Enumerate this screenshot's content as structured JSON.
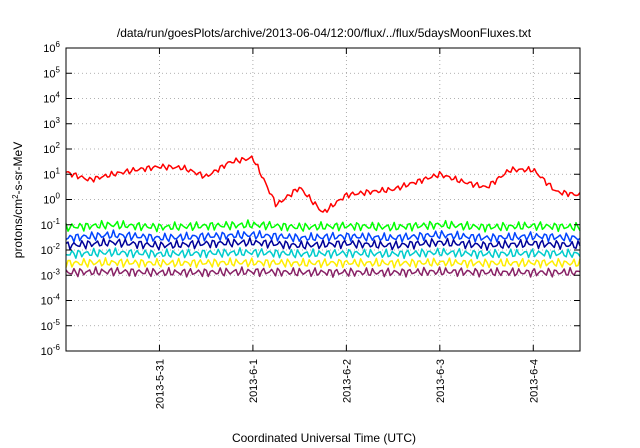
{
  "chart_data": {
    "type": "line",
    "title": "/data/run/goesPlots/archive/2013-06-04/12:00/flux/../flux/5daysMoonFluxes.txt",
    "xlabel": "Coordinated Universal Time (UTC)",
    "ylabel": "protons/cm²-s-sr-MeV",
    "ylabel_parts": {
      "base": "protons/cm",
      "sup": "2",
      "rest": "-s-sr-MeV"
    },
    "yscale": "log",
    "ylim": [
      1e-06,
      1000000.0
    ],
    "y_ticks": [
      {
        "exp": -6,
        "base": "10",
        "sup": "-6"
      },
      {
        "exp": -5,
        "base": "10",
        "sup": "-5"
      },
      {
        "exp": -4,
        "base": "10",
        "sup": "-4"
      },
      {
        "exp": -3,
        "base": "10",
        "sup": "-3"
      },
      {
        "exp": -2,
        "base": "10",
        "sup": "-2"
      },
      {
        "exp": -1,
        "base": "10",
        "sup": "-1"
      },
      {
        "exp": 0,
        "base": "10",
        "sup": "0"
      },
      {
        "exp": 1,
        "base": "10",
        "sup": "1"
      },
      {
        "exp": 2,
        "base": "10",
        "sup": "2"
      },
      {
        "exp": 3,
        "base": "10",
        "sup": "3"
      },
      {
        "exp": 4,
        "base": "10",
        "sup": "4"
      },
      {
        "exp": 5,
        "base": "10",
        "sup": "5"
      },
      {
        "exp": 6,
        "base": "10",
        "sup": "6"
      }
    ],
    "x_range": [
      "2013-05-30 00:00",
      "2013-06-04 12:00"
    ],
    "x_ticks": [
      "2013-5-31",
      "2013-6-1",
      "2013-6-2",
      "2013-6-3",
      "2013-6-4"
    ],
    "grid": true,
    "series": [
      {
        "color": "#ff0000",
        "x": [
          "2013-05-30 00:00",
          "2013-05-30 06:00",
          "2013-05-30 12:00",
          "2013-05-30 18:00",
          "2013-05-31 00:00",
          "2013-05-31 06:00",
          "2013-05-31 12:00",
          "2013-05-31 18:00",
          "2013-06-01 00:00",
          "2013-06-01 06:00",
          "2013-06-01 12:00",
          "2013-06-01 18:00",
          "2013-06-02 00:00",
          "2013-06-02 06:00",
          "2013-06-02 12:00",
          "2013-06-02 18:00",
          "2013-06-03 00:00",
          "2013-06-03 06:00",
          "2013-06-03 12:00",
          "2013-06-03 18:00",
          "2013-06-04 00:00",
          "2013-06-04 06:00",
          "2013-06-04 12:00"
        ],
        "values": [
          12,
          6,
          10,
          15,
          20,
          18,
          8,
          30,
          45,
          0.6,
          3,
          0.3,
          1.5,
          2,
          2.5,
          5,
          10,
          5,
          3,
          15,
          15,
          2,
          1.5
        ]
      },
      {
        "color": "#00ff00",
        "x": [
          "2013-05-30 00:00",
          "2013-05-30 12:00",
          "2013-05-31 00:00",
          "2013-05-31 12:00",
          "2013-06-01 00:00",
          "2013-06-01 12:00",
          "2013-06-02 00:00",
          "2013-06-02 12:00",
          "2013-06-03 00:00",
          "2013-06-03 12:00",
          "2013-06-04 00:00",
          "2013-06-04 12:00"
        ],
        "values": [
          0.08,
          0.1,
          0.08,
          0.09,
          0.1,
          0.08,
          0.09,
          0.08,
          0.1,
          0.08,
          0.09,
          0.08
        ]
      },
      {
        "color": "#0044ff",
        "x": [
          "2013-05-30 00:00",
          "2013-05-30 12:00",
          "2013-05-31 00:00",
          "2013-05-31 12:00",
          "2013-06-01 00:00",
          "2013-06-01 12:00",
          "2013-06-02 00:00",
          "2013-06-02 12:00",
          "2013-06-03 00:00",
          "2013-06-03 12:00",
          "2013-06-04 00:00",
          "2013-06-04 12:00"
        ],
        "values": [
          0.03,
          0.04,
          0.03,
          0.035,
          0.04,
          0.03,
          0.035,
          0.03,
          0.04,
          0.03,
          0.035,
          0.03
        ]
      },
      {
        "color": "#000099",
        "x": [
          "2013-05-30 00:00",
          "2013-05-30 12:00",
          "2013-05-31 00:00",
          "2013-05-31 12:00",
          "2013-06-01 00:00",
          "2013-06-01 12:00",
          "2013-06-02 00:00",
          "2013-06-02 12:00",
          "2013-06-03 00:00",
          "2013-06-03 12:00",
          "2013-06-04 00:00",
          "2013-06-04 12:00"
        ],
        "values": [
          0.015,
          0.02,
          0.015,
          0.018,
          0.02,
          0.015,
          0.018,
          0.015,
          0.02,
          0.015,
          0.018,
          0.015
        ]
      },
      {
        "color": "#00cccc",
        "x": [
          "2013-05-30 00:00",
          "2013-05-30 12:00",
          "2013-05-31 00:00",
          "2013-05-31 12:00",
          "2013-06-01 00:00",
          "2013-06-01 12:00",
          "2013-06-02 00:00",
          "2013-06-02 12:00",
          "2013-06-03 00:00",
          "2013-06-03 12:00",
          "2013-06-04 00:00",
          "2013-06-04 12:00"
        ],
        "values": [
          0.007,
          0.008,
          0.007,
          0.0075,
          0.008,
          0.007,
          0.0075,
          0.007,
          0.008,
          0.007,
          0.0075,
          0.007
        ]
      },
      {
        "color": "#ffee00",
        "x": [
          "2013-05-30 00:00",
          "2013-05-30 12:00",
          "2013-05-31 00:00",
          "2013-05-31 12:00",
          "2013-06-01 00:00",
          "2013-06-01 12:00",
          "2013-06-02 00:00",
          "2013-06-02 12:00",
          "2013-06-03 00:00",
          "2013-06-03 12:00",
          "2013-06-04 00:00",
          "2013-06-04 12:00"
        ],
        "values": [
          0.003,
          0.0032,
          0.003,
          0.0031,
          0.0032,
          0.003,
          0.0031,
          0.003,
          0.0032,
          0.003,
          0.0031,
          0.003
        ]
      },
      {
        "color": "#882266",
        "x": [
          "2013-05-30 00:00",
          "2013-05-30 12:00",
          "2013-05-31 00:00",
          "2013-05-31 12:00",
          "2013-06-01 00:00",
          "2013-06-01 12:00",
          "2013-06-02 00:00",
          "2013-06-02 12:00",
          "2013-06-03 00:00",
          "2013-06-03 12:00",
          "2013-06-04 00:00",
          "2013-06-04 12:00"
        ],
        "values": [
          0.0013,
          0.0014,
          0.0013,
          0.0013,
          0.0014,
          0.0013,
          0.0013,
          0.0013,
          0.0014,
          0.0013,
          0.0013,
          0.0013
        ]
      }
    ]
  }
}
